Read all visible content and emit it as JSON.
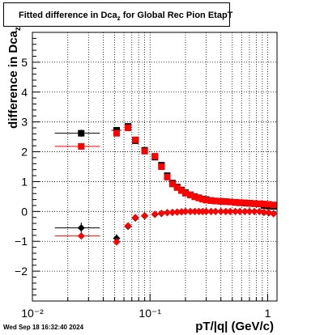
{
  "title": {
    "prefix": "Fitted difference in Dca",
    "subscript": "z",
    "suffix": " for Global Rec Pion EtapT"
  },
  "ylabel": {
    "main": "difference in Dca",
    "subscript": "z"
  },
  "xlabel": "pT/|q| (GeV/c)",
  "timestamp": "Wed Sep 18 16:32:40 2024",
  "chart_data": {
    "type": "scatter",
    "x_scale": "log",
    "xlim": [
      0.01,
      1.2
    ],
    "ylim": [
      -3,
      6
    ],
    "y_ticks": [
      -2,
      -1,
      0,
      1,
      2,
      3,
      4,
      5
    ],
    "y_tick_labels": [
      "−2",
      "−1",
      "0",
      "1",
      "2",
      "3",
      "4",
      "5"
    ],
    "x_major_ticks": [
      0.01,
      0.1,
      1
    ],
    "x_tick_labels": [
      "10⁻²",
      "10⁻¹",
      "1"
    ],
    "grid": true,
    "series": [
      {
        "marker": "square",
        "color": "#000000",
        "points": [
          {
            "x": 0.026,
            "y": 2.62,
            "xerr": [
              0.0155,
              0.0375
            ],
            "yerr": 0.12
          },
          {
            "x": 0.052,
            "y": 2.72,
            "xerr": [
              0.047,
              0.057
            ],
            "yerr": 0.08
          },
          {
            "x": 0.065,
            "y": 2.85,
            "yerr": 0.06
          },
          {
            "x": 0.075,
            "y": 2.37
          },
          {
            "x": 0.09,
            "y": 2.05
          },
          {
            "x": 0.11,
            "y": 1.82
          },
          {
            "x": 0.125,
            "y": 1.55
          },
          {
            "x": 0.14,
            "y": 1.2
          },
          {
            "x": 0.155,
            "y": 0.95
          },
          {
            "x": 0.17,
            "y": 0.82
          },
          {
            "x": 0.185,
            "y": 0.72
          },
          {
            "x": 0.2,
            "y": 0.63
          },
          {
            "x": 0.22,
            "y": 0.56
          },
          {
            "x": 0.24,
            "y": 0.5
          },
          {
            "x": 0.26,
            "y": 0.46
          },
          {
            "x": 0.28,
            "y": 0.42
          },
          {
            "x": 0.3,
            "y": 0.4
          },
          {
            "x": 0.33,
            "y": 0.37
          },
          {
            "x": 0.36,
            "y": 0.35
          },
          {
            "x": 0.4,
            "y": 0.34
          },
          {
            "x": 0.44,
            "y": 0.33
          },
          {
            "x": 0.48,
            "y": 0.32
          },
          {
            "x": 0.53,
            "y": 0.3
          },
          {
            "x": 0.58,
            "y": 0.29
          },
          {
            "x": 0.64,
            "y": 0.28
          },
          {
            "x": 0.7,
            "y": 0.27
          },
          {
            "x": 0.77,
            "y": 0.26
          },
          {
            "x": 0.85,
            "y": 0.25
          },
          {
            "x": 0.93,
            "y": 0.2
          },
          {
            "x": 1.02,
            "y": 0.18
          },
          {
            "x": 1.12,
            "y": 0.17
          }
        ]
      },
      {
        "marker": "square",
        "color": "#ff0000",
        "points": [
          {
            "x": 0.026,
            "y": 2.18,
            "xerr": [
              0.0155,
              0.0375
            ]
          },
          {
            "x": 0.052,
            "y": 2.62
          },
          {
            "x": 0.065,
            "y": 2.8
          },
          {
            "x": 0.075,
            "y": 2.4
          },
          {
            "x": 0.09,
            "y": 2.02
          },
          {
            "x": 0.11,
            "y": 1.85
          },
          {
            "x": 0.125,
            "y": 1.5
          },
          {
            "x": 0.14,
            "y": 1.15
          },
          {
            "x": 0.155,
            "y": 0.92
          },
          {
            "x": 0.17,
            "y": 0.8
          },
          {
            "x": 0.185,
            "y": 0.7
          },
          {
            "x": 0.2,
            "y": 0.61
          },
          {
            "x": 0.22,
            "y": 0.55
          },
          {
            "x": 0.24,
            "y": 0.49
          },
          {
            "x": 0.26,
            "y": 0.45
          },
          {
            "x": 0.28,
            "y": 0.41
          },
          {
            "x": 0.3,
            "y": 0.38
          },
          {
            "x": 0.33,
            "y": 0.36
          },
          {
            "x": 0.36,
            "y": 0.35
          },
          {
            "x": 0.4,
            "y": 0.34
          },
          {
            "x": 0.44,
            "y": 0.33
          },
          {
            "x": 0.48,
            "y": 0.32
          },
          {
            "x": 0.53,
            "y": 0.31
          },
          {
            "x": 0.58,
            "y": 0.3
          },
          {
            "x": 0.64,
            "y": 0.29
          },
          {
            "x": 0.7,
            "y": 0.28
          },
          {
            "x": 0.77,
            "y": 0.27
          },
          {
            "x": 0.85,
            "y": 0.26
          },
          {
            "x": 0.93,
            "y": 0.25
          },
          {
            "x": 1.02,
            "y": 0.24
          },
          {
            "x": 1.12,
            "y": 0.22
          }
        ]
      },
      {
        "marker": "diamond",
        "color": "#000000",
        "points": [
          {
            "x": 0.026,
            "y": -0.55,
            "xerr": [
              0.0155,
              0.0375
            ],
            "yerr": 0.18
          },
          {
            "x": 0.052,
            "y": -0.9,
            "yerr": 0.14
          },
          {
            "x": 0.065,
            "y": -0.5
          },
          {
            "x": 0.075,
            "y": -0.22
          },
          {
            "x": 0.09,
            "y": -0.15
          },
          {
            "x": 0.11,
            "y": -0.1
          },
          {
            "x": 0.125,
            "y": -0.07
          },
          {
            "x": 0.14,
            "y": -0.04
          },
          {
            "x": 0.155,
            "y": -0.03
          },
          {
            "x": 0.17,
            "y": -0.02
          },
          {
            "x": 0.185,
            "y": -0.01
          },
          {
            "x": 0.2,
            "y": 0.0
          },
          {
            "x": 0.22,
            "y": 0.0
          },
          {
            "x": 0.24,
            "y": 0.0
          },
          {
            "x": 0.26,
            "y": 0.0
          },
          {
            "x": 0.28,
            "y": 0.0
          },
          {
            "x": 0.3,
            "y": 0.0
          },
          {
            "x": 0.33,
            "y": 0.0
          },
          {
            "x": 0.36,
            "y": 0.0
          },
          {
            "x": 0.4,
            "y": 0.0
          },
          {
            "x": 0.44,
            "y": 0.0
          },
          {
            "x": 0.48,
            "y": 0.0
          },
          {
            "x": 0.53,
            "y": 0.0
          },
          {
            "x": 0.58,
            "y": 0.0
          },
          {
            "x": 0.64,
            "y": 0.0
          },
          {
            "x": 0.7,
            "y": 0.0
          },
          {
            "x": 0.77,
            "y": 0.0
          },
          {
            "x": 0.85,
            "y": 0.0
          },
          {
            "x": 0.93,
            "y": -0.03
          },
          {
            "x": 1.02,
            "y": -0.05
          },
          {
            "x": 1.12,
            "y": -0.07
          }
        ]
      },
      {
        "marker": "diamond",
        "color": "#ff0000",
        "points": [
          {
            "x": 0.026,
            "y": -0.82,
            "xerr": [
              0.0155,
              0.0375
            ]
          },
          {
            "x": 0.052,
            "y": -1.02,
            "yerr": 0.12
          },
          {
            "x": 0.065,
            "y": -0.48
          },
          {
            "x": 0.075,
            "y": -0.2
          },
          {
            "x": 0.09,
            "y": -0.14
          },
          {
            "x": 0.11,
            "y": -0.09
          },
          {
            "x": 0.125,
            "y": -0.06
          },
          {
            "x": 0.14,
            "y": -0.04
          },
          {
            "x": 0.155,
            "y": -0.03
          },
          {
            "x": 0.17,
            "y": -0.02
          },
          {
            "x": 0.185,
            "y": -0.01
          },
          {
            "x": 0.2,
            "y": 0.0
          },
          {
            "x": 0.22,
            "y": 0.0
          },
          {
            "x": 0.24,
            "y": 0.0
          },
          {
            "x": 0.26,
            "y": 0.0
          },
          {
            "x": 0.28,
            "y": 0.0
          },
          {
            "x": 0.3,
            "y": 0.0
          },
          {
            "x": 0.33,
            "y": 0.0
          },
          {
            "x": 0.36,
            "y": 0.0
          },
          {
            "x": 0.4,
            "y": 0.0
          },
          {
            "x": 0.44,
            "y": 0.0
          },
          {
            "x": 0.48,
            "y": 0.0
          },
          {
            "x": 0.53,
            "y": 0.0
          },
          {
            "x": 0.58,
            "y": 0.0
          },
          {
            "x": 0.64,
            "y": 0.0
          },
          {
            "x": 0.7,
            "y": 0.0
          },
          {
            "x": 0.77,
            "y": 0.0
          },
          {
            "x": 0.85,
            "y": 0.0
          },
          {
            "x": 0.93,
            "y": -0.02
          },
          {
            "x": 1.02,
            "y": -0.04
          },
          {
            "x": 1.12,
            "y": -0.08
          }
        ]
      }
    ]
  }
}
